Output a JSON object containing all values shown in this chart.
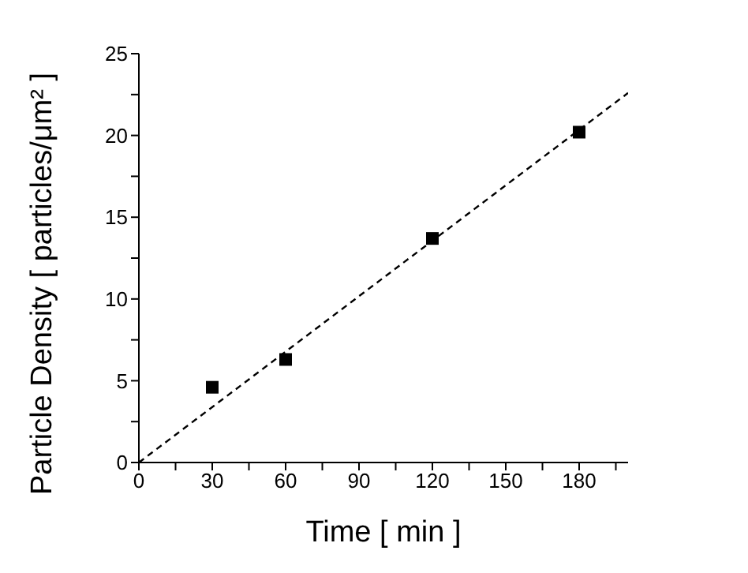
{
  "chart_data": {
    "type": "scatter",
    "xlabel": "Time [ min ]",
    "ylabel": "Particle Density [ particles/μm² ]",
    "xlim": [
      0,
      200
    ],
    "ylim": [
      0,
      25
    ],
    "xticks": [
      0,
      {
        "value": 15,
        "label": null
      },
      30,
      {
        "value": 45,
        "label": null
      },
      60,
      {
        "value": 75,
        "label": null
      },
      90,
      {
        "value": 105,
        "label": null
      },
      120,
      {
        "value": 135,
        "label": null
      },
      150,
      {
        "value": 165,
        "label": null
      },
      180,
      {
        "value": 195,
        "label": null
      }
    ],
    "yticks": [
      0,
      {
        "value": 2.5,
        "label": null
      },
      5,
      {
        "value": 7.5,
        "label": null
      },
      10,
      {
        "value": 12.5,
        "label": null
      },
      15,
      {
        "value": 17.5,
        "label": null
      },
      20,
      {
        "value": 22.5,
        "label": null
      },
      25
    ],
    "grid": false,
    "legend": false,
    "series": [
      {
        "type": "scatter",
        "marker": "square",
        "color": "#000000",
        "x": [
          30,
          60,
          120,
          180
        ],
        "values": [
          4.6,
          6.3,
          13.7,
          20.2
        ]
      },
      {
        "type": "line",
        "marker": "none",
        "line_style": "dashed",
        "color": "#000000",
        "x": [
          0,
          200
        ],
        "values": [
          0,
          22.6
        ]
      }
    ]
  }
}
